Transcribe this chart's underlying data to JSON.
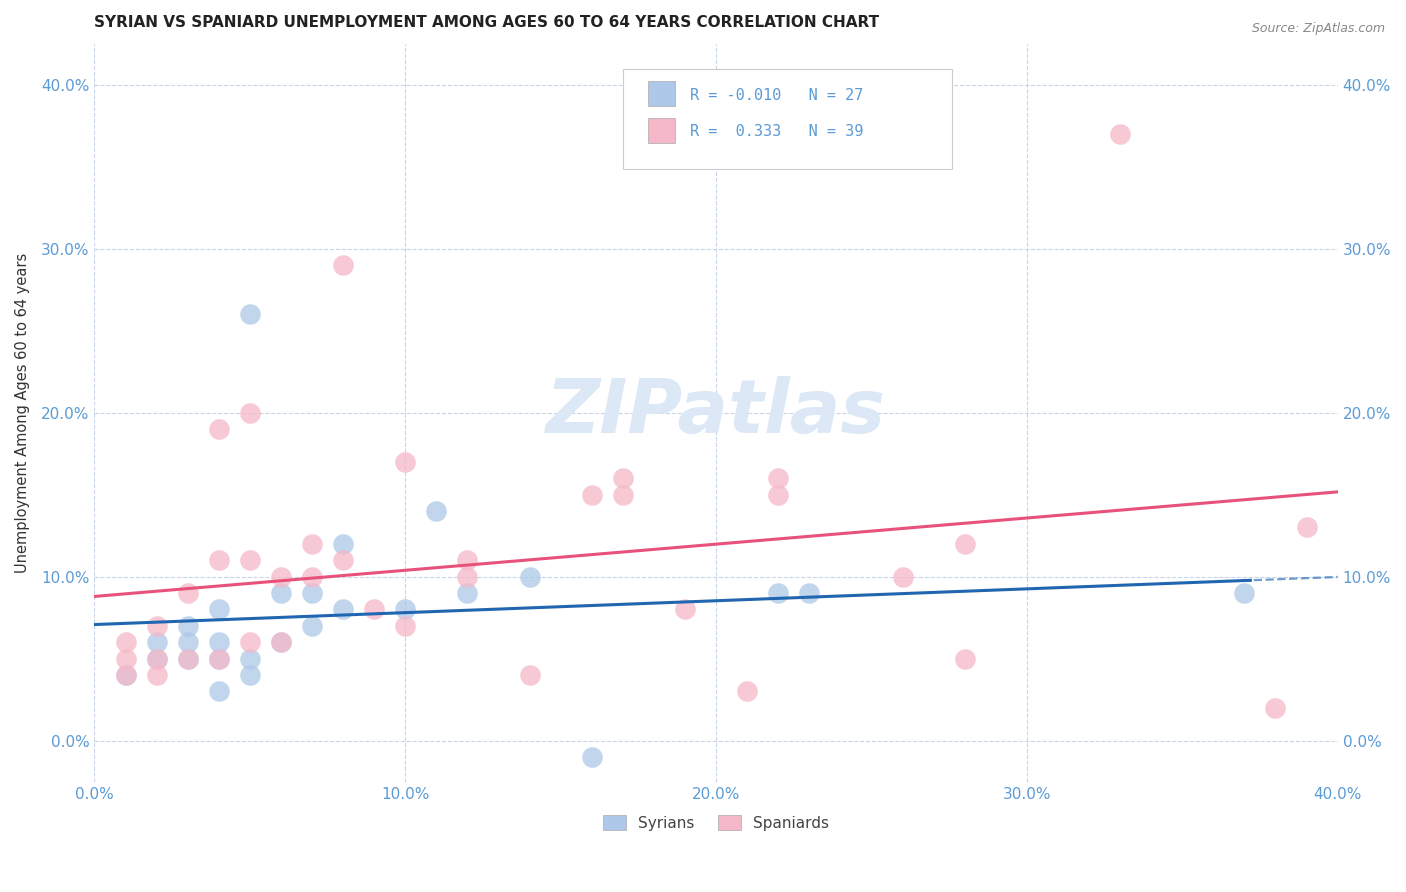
{
  "title": "SYRIAN VS SPANIARD UNEMPLOYMENT AMONG AGES 60 TO 64 YEARS CORRELATION CHART",
  "source": "Source: ZipAtlas.com",
  "ylabel": "Unemployment Among Ages 60 to 64 years",
  "xlim": [
    0.0,
    0.4
  ],
  "ylim": [
    -0.025,
    0.425
  ],
  "xticks": [
    0.0,
    0.1,
    0.2,
    0.3,
    0.4
  ],
  "xticklabels": [
    "0.0%",
    "10.0%",
    "20.0%",
    "30.0%",
    "40.0%"
  ],
  "yticks": [
    0.0,
    0.1,
    0.2,
    0.3,
    0.4
  ],
  "yticklabels": [
    "0.0%",
    "10.0%",
    "20.0%",
    "30.0%",
    "40.0%"
  ],
  "syrian_R": "-0.010",
  "syrian_N": "27",
  "spaniard_R": "0.333",
  "spaniard_N": "39",
  "syrian_color": "#adc8e8",
  "spaniard_color": "#f5b8c8",
  "syrian_line_color": "#2166b0",
  "spaniard_line_color": "#e8517a",
  "watermark_color": "#dce8f5",
  "background_color": "#ffffff",
  "grid_color": "#c8d4e8",
  "title_fontsize": 11,
  "tick_label_color": "#5b9bd5",
  "syrian_x": [
    0.01,
    0.02,
    0.02,
    0.03,
    0.03,
    0.03,
    0.04,
    0.04,
    0.04,
    0.04,
    0.05,
    0.05,
    0.05,
    0.06,
    0.06,
    0.07,
    0.07,
    0.08,
    0.08,
    0.1,
    0.11,
    0.12,
    0.14,
    0.16,
    0.22,
    0.23,
    0.37
  ],
  "syrian_y": [
    0.04,
    0.05,
    0.06,
    0.05,
    0.06,
    0.07,
    0.03,
    0.05,
    0.06,
    0.08,
    0.04,
    0.05,
    0.26,
    0.06,
    0.09,
    0.07,
    0.09,
    0.08,
    0.12,
    0.08,
    0.14,
    0.09,
    0.1,
    -0.01,
    0.09,
    0.09,
    0.09
  ],
  "spaniard_x": [
    0.01,
    0.01,
    0.01,
    0.02,
    0.02,
    0.02,
    0.03,
    0.03,
    0.04,
    0.04,
    0.04,
    0.05,
    0.05,
    0.05,
    0.06,
    0.06,
    0.07,
    0.07,
    0.08,
    0.08,
    0.09,
    0.1,
    0.1,
    0.12,
    0.12,
    0.14,
    0.16,
    0.17,
    0.17,
    0.19,
    0.21,
    0.22,
    0.22,
    0.26,
    0.28,
    0.28,
    0.33,
    0.38,
    0.39
  ],
  "spaniard_y": [
    0.04,
    0.05,
    0.06,
    0.04,
    0.05,
    0.07,
    0.05,
    0.09,
    0.05,
    0.11,
    0.19,
    0.06,
    0.11,
    0.2,
    0.06,
    0.1,
    0.1,
    0.12,
    0.11,
    0.29,
    0.08,
    0.07,
    0.17,
    0.1,
    0.11,
    0.04,
    0.15,
    0.15,
    0.16,
    0.08,
    0.03,
    0.15,
    0.16,
    0.1,
    0.05,
    0.12,
    0.37,
    0.02,
    0.13
  ]
}
